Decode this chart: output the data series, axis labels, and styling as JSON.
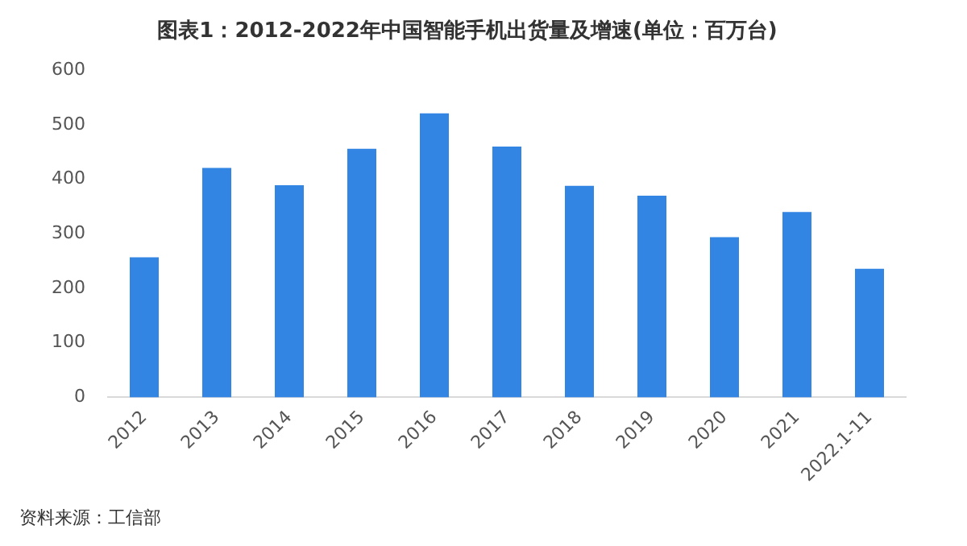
{
  "chart_data": {
    "type": "bar",
    "title": "图表1：2012-2022年中国智能手机出货量及增速(单位：百万台)",
    "categories": [
      "2012",
      "2013",
      "2014",
      "2015",
      "2016",
      "2017",
      "2018",
      "2019",
      "2020",
      "2021",
      "2022.1-11"
    ],
    "values": [
      257,
      421,
      389,
      456,
      521,
      460,
      388,
      370,
      294,
      340,
      236
    ],
    "color": "#3385e3",
    "ylim": [
      0,
      600
    ],
    "yticks": [
      0,
      100,
      200,
      300,
      400,
      500,
      600
    ],
    "grid": false,
    "legend": false,
    "annotations": [
      "资料来源：工信部"
    ]
  }
}
